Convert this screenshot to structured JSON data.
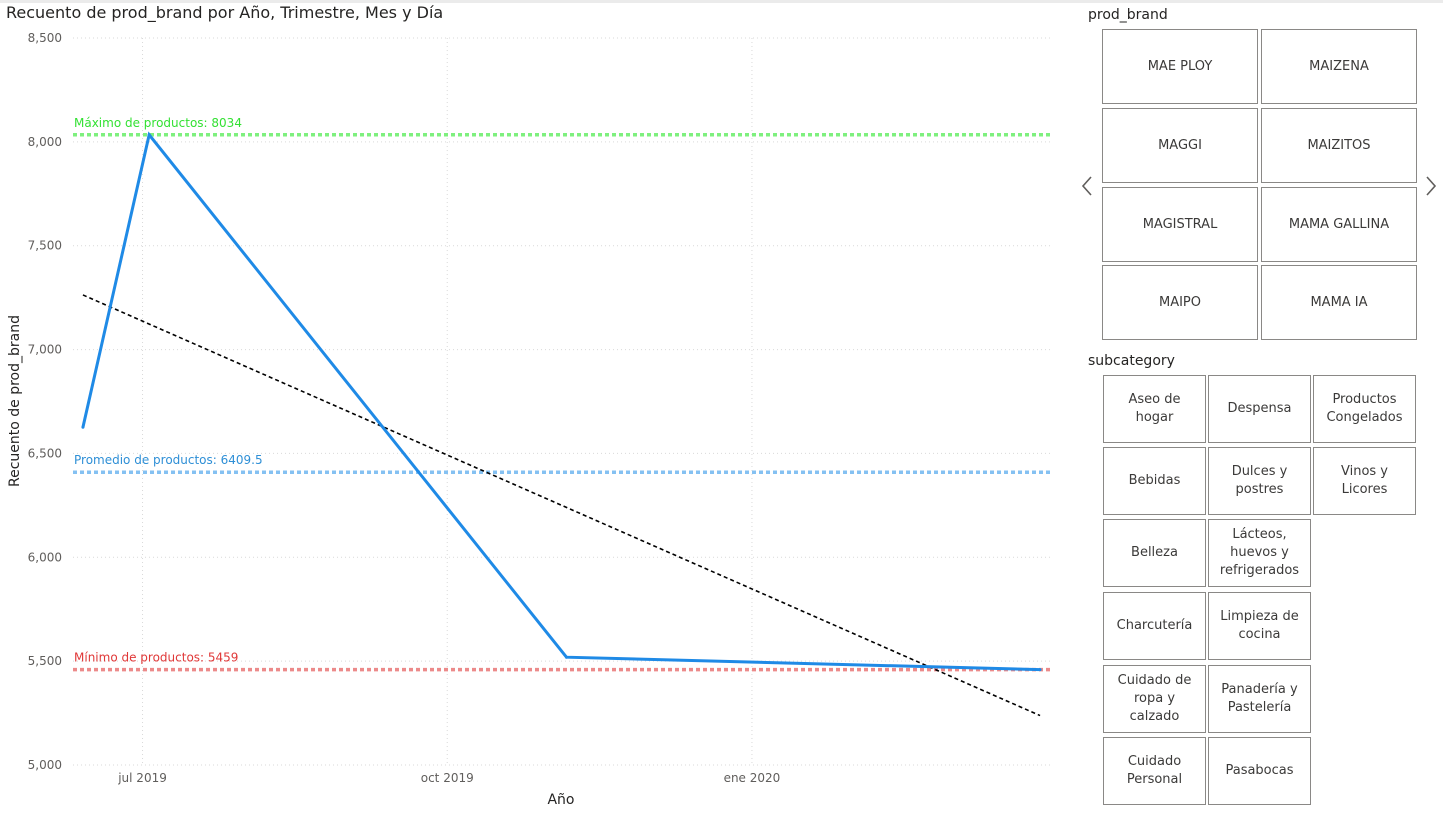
{
  "chart": {
    "title": "Recuento de prod_brand por Año, Trimestre, Mes y Día",
    "ylabel": "Recuento de prod_brand",
    "xlabel": "Año",
    "ref_lines": {
      "max": {
        "label": "Máximo de productos: 8034",
        "value": 8034,
        "color": "#33e133"
      },
      "avg": {
        "label": "Promedio de productos: 6409.5",
        "value": 6409.5,
        "color": "#2e8fd6"
      },
      "min": {
        "label": "Mínimo de productos: 5459",
        "value": 5459,
        "color": "#e03838"
      }
    }
  },
  "chart_data": {
    "type": "line",
    "title": "Recuento de prod_brand por Año, Trimestre, Mes y Día",
    "xlabel": "Año",
    "ylabel": "Recuento de prod_brand",
    "x_ticks": [
      "jul 2019",
      "oct 2019",
      "ene 2020"
    ],
    "y_ticks": [
      "5,000",
      "5,500",
      "6,000",
      "6,500",
      "7,000",
      "7,500",
      "8,000",
      "8,500"
    ],
    "ylim": [
      5000,
      8500
    ],
    "x_range": [
      "2019-06-10",
      "2020-03-31"
    ],
    "grid": true,
    "series": [
      {
        "color": "#1f8ae6",
        "points": [
          {
            "x": "2019-06-13",
            "y": 6626
          },
          {
            "x": "2019-07-03",
            "y": 8034
          },
          {
            "x": "2019-11-06",
            "y": 5519
          },
          {
            "x": "2020-03-28",
            "y": 5459
          }
        ]
      }
    ],
    "trend_line": {
      "color": "#000000",
      "points": [
        {
          "x": "2019-06-13",
          "y": 7263
        },
        {
          "x": "2020-03-28",
          "y": 5238
        }
      ]
    }
  },
  "prod_brand": {
    "title": "prod_brand",
    "items": [
      "MAE PLOY",
      "MAIZENA",
      "MAGGI",
      "MAIZITOS",
      "MAGISTRAL",
      "MAMA GALLINA",
      "MAIPO",
      "MAMA IA"
    ],
    "prev_icon": "chevron-left-icon",
    "next_icon": "chevron-right-icon"
  },
  "subcategory": {
    "title": "subcategory",
    "items": [
      "Aseo de\nhogar",
      "Despensa",
      "Productos\nCongelados",
      "Bebidas",
      "Dulces y\npostres",
      "Vinos y\nLicores",
      "Belleza",
      "Lácteos,\nhuevos y\nrefrigerados",
      "Charcutería",
      "Limpieza de\ncocina",
      "Cuidado de\nropa y\ncalzado",
      "Panadería y\nPastelería",
      "Cuidado\nPersonal",
      "Pasabocas"
    ]
  }
}
